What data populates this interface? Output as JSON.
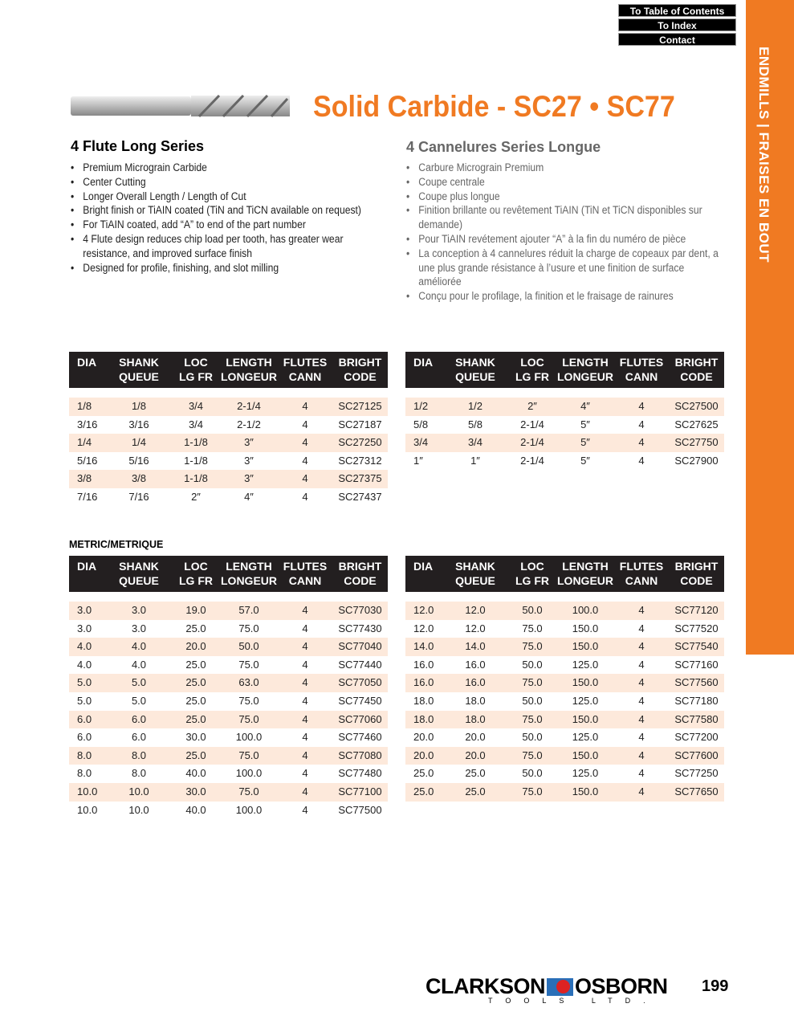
{
  "nav": [
    "To Table of Contents",
    "To Index",
    "Contact"
  ],
  "side_tab": "ENDMILLS | FRAISES EN BOUT",
  "title": "Solid Carbide - SC27 • SC77",
  "en": {
    "heading": "4 Flute Long Series",
    "bullets": [
      "Premium Micrograin Carbide",
      "Center Cutting",
      "Longer Overall Length / Length of Cut",
      "Bright finish or TiAIN coated (TiN and TiCN available on request)",
      "For TiAIN coated, add “A” to end of the part number",
      "4 Flute design reduces chip load per tooth, has greater wear resistance, and improved surface finish",
      "Designed for profile, finishing, and slot milling"
    ]
  },
  "fr": {
    "heading": "4 Cannelures Series Longue",
    "bullets": [
      "Carbure Micrograin Premium",
      "Coupe centrale",
      "Coupe plus longue",
      "Finition brillante ou revêtement TiAIN (TiN et TiCN disponibles sur demande)",
      "Pour TiAIN revétement ajouter “A” à la fin du numéro de pièce",
      "La conception à 4 cannelures réduit la charge de copeaux par dent, a une plus grande résistance à l’usure et une finition de surface améliorée",
      "Conçu pour le profilage, la finition et le fraisage de rainures"
    ]
  },
  "headers": [
    "DIA",
    "SHANK\nQUEUE",
    "LOC\nLG FR",
    "LENGTH\nLONGEUR",
    "FLUTES\nCANN",
    "BRIGHT\nCODE"
  ],
  "metric_label": "METRIC/METRIQUE",
  "tables": [
    [
      [
        "1/8",
        "1/8",
        "3/4",
        "2-1/4",
        "4",
        "SC27125"
      ],
      [
        "3/16",
        "3/16",
        "3/4",
        "2-1/2",
        "4",
        "SC27187"
      ],
      [
        "1/4",
        "1/4",
        "1-1/8",
        "3″",
        "4",
        "SC27250"
      ],
      [
        "5/16",
        "5/16",
        "1-1/8",
        "3″",
        "4",
        "SC27312"
      ],
      [
        "3/8",
        "3/8",
        "1-1/8",
        "3″",
        "4",
        "SC27375"
      ],
      [
        "7/16",
        "7/16",
        "2″",
        "4″",
        "4",
        "SC27437"
      ]
    ],
    [
      [
        "1/2",
        "1/2",
        "2″",
        "4″",
        "4",
        "SC27500"
      ],
      [
        "5/8",
        "5/8",
        "2-1/4",
        "5″",
        "4",
        "SC27625"
      ],
      [
        "3/4",
        "3/4",
        "2-1/4",
        "5″",
        "4",
        "SC27750"
      ],
      [
        "1″",
        "1″",
        "2-1/4",
        "5″",
        "4",
        "SC27900"
      ]
    ],
    [
      [
        "3.0",
        "3.0",
        "19.0",
        "57.0",
        "4",
        "SC77030"
      ],
      [
        "3.0",
        "3.0",
        "25.0",
        "75.0",
        "4",
        "SC77430"
      ],
      [
        "4.0",
        "4.0",
        "20.0",
        "50.0",
        "4",
        "SC77040"
      ],
      [
        "4.0",
        "4.0",
        "25.0",
        "75.0",
        "4",
        "SC77440"
      ],
      [
        "5.0",
        "5.0",
        "25.0",
        "63.0",
        "4",
        "SC77050"
      ],
      [
        "5.0",
        "5.0",
        "25.0",
        "75.0",
        "4",
        "SC77450"
      ],
      [
        "6.0",
        "6.0",
        "25.0",
        "75.0",
        "4",
        "SC77060"
      ],
      [
        "6.0",
        "6.0",
        "30.0",
        "100.0",
        "4",
        "SC77460"
      ],
      [
        "8.0",
        "8.0",
        "25.0",
        "75.0",
        "4",
        "SC77080"
      ],
      [
        "8.0",
        "8.0",
        "40.0",
        "100.0",
        "4",
        "SC77480"
      ],
      [
        "10.0",
        "10.0",
        "30.0",
        "75.0",
        "4",
        "SC77100"
      ],
      [
        "10.0",
        "10.0",
        "40.0",
        "100.0",
        "4",
        "SC77500"
      ]
    ],
    [
      [
        "12.0",
        "12.0",
        "50.0",
        "100.0",
        "4",
        "SC77120"
      ],
      [
        "12.0",
        "12.0",
        "75.0",
        "150.0",
        "4",
        "SC77520"
      ],
      [
        "14.0",
        "14.0",
        "75.0",
        "150.0",
        "4",
        "SC77540"
      ],
      [
        "16.0",
        "16.0",
        "50.0",
        "125.0",
        "4",
        "SC77160"
      ],
      [
        "16.0",
        "16.0",
        "75.0",
        "150.0",
        "4",
        "SC77560"
      ],
      [
        "18.0",
        "18.0",
        "50.0",
        "125.0",
        "4",
        "SC77180"
      ],
      [
        "18.0",
        "18.0",
        "75.0",
        "150.0",
        "4",
        "SC77580"
      ],
      [
        "20.0",
        "20.0",
        "50.0",
        "125.0",
        "4",
        "SC77200"
      ],
      [
        "20.0",
        "20.0",
        "75.0",
        "150.0",
        "4",
        "SC77600"
      ],
      [
        "25.0",
        "25.0",
        "50.0",
        "125.0",
        "4",
        "SC77250"
      ],
      [
        "25.0",
        "25.0",
        "75.0",
        "150.0",
        "4",
        "SC77650"
      ]
    ]
  ],
  "footer": {
    "brand_left": "CLARKSON",
    "brand_right": "OSBORN",
    "brand_sub": "TOOLS LTD.",
    "page_number": "199"
  },
  "colors": {
    "accent": "#f07a22",
    "row_shade": "#fde9db",
    "header_bg": "#231f20"
  }
}
